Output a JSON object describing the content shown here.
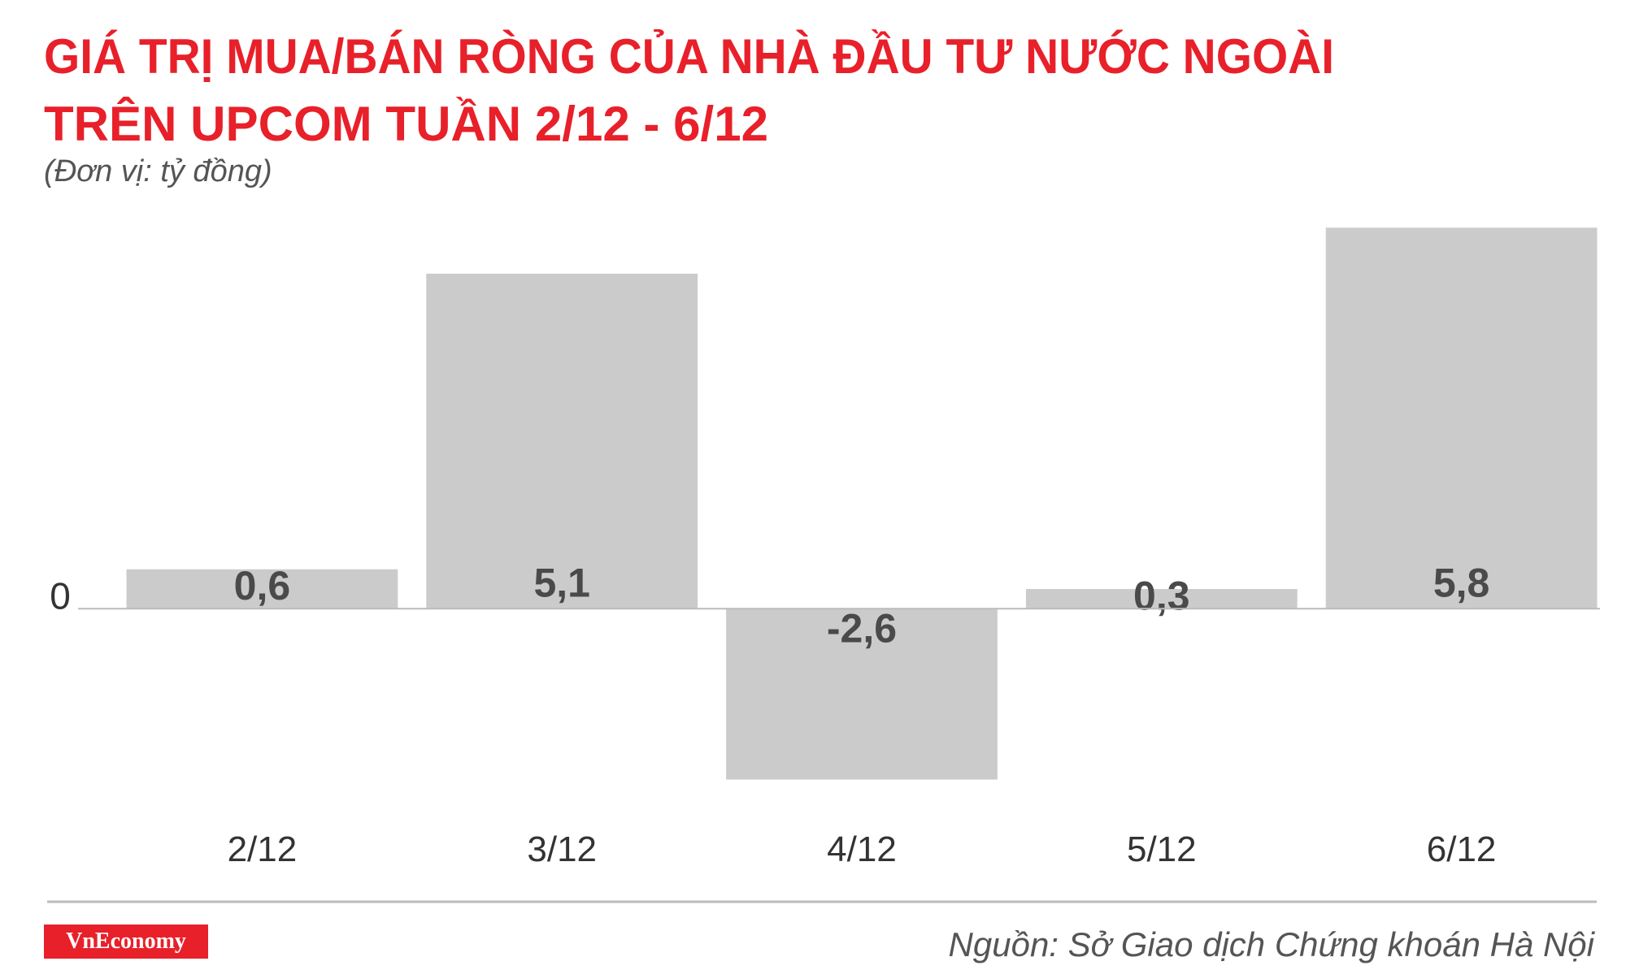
{
  "chart_data": {
    "type": "bar",
    "title": [
      "GIÁ TRỊ MUA/BÁN RÒNG CỦA NHÀ ĐẦU TƯ NƯỚC NGOÀI",
      "TRÊN UPCOM TUẦN 2/12 - 6/12"
    ],
    "subtitle": "(Đơn vị: tỷ đồng)",
    "categories": [
      "2/12",
      "3/12",
      "4/12",
      "5/12",
      "6/12"
    ],
    "values": [
      0.6,
      5.1,
      -2.6,
      0.3,
      5.8
    ],
    "value_labels": [
      "0,6",
      "5,1",
      "-2,6",
      "0,3",
      "5,8"
    ],
    "color": "#cccbcb",
    "ylim": [
      -3.1,
      6.1
    ],
    "yticks": [
      0
    ],
    "source": "Nguồn: Sở Giao dịch Chứng khoán Hà Nội",
    "brand": "VnEconomy"
  }
}
